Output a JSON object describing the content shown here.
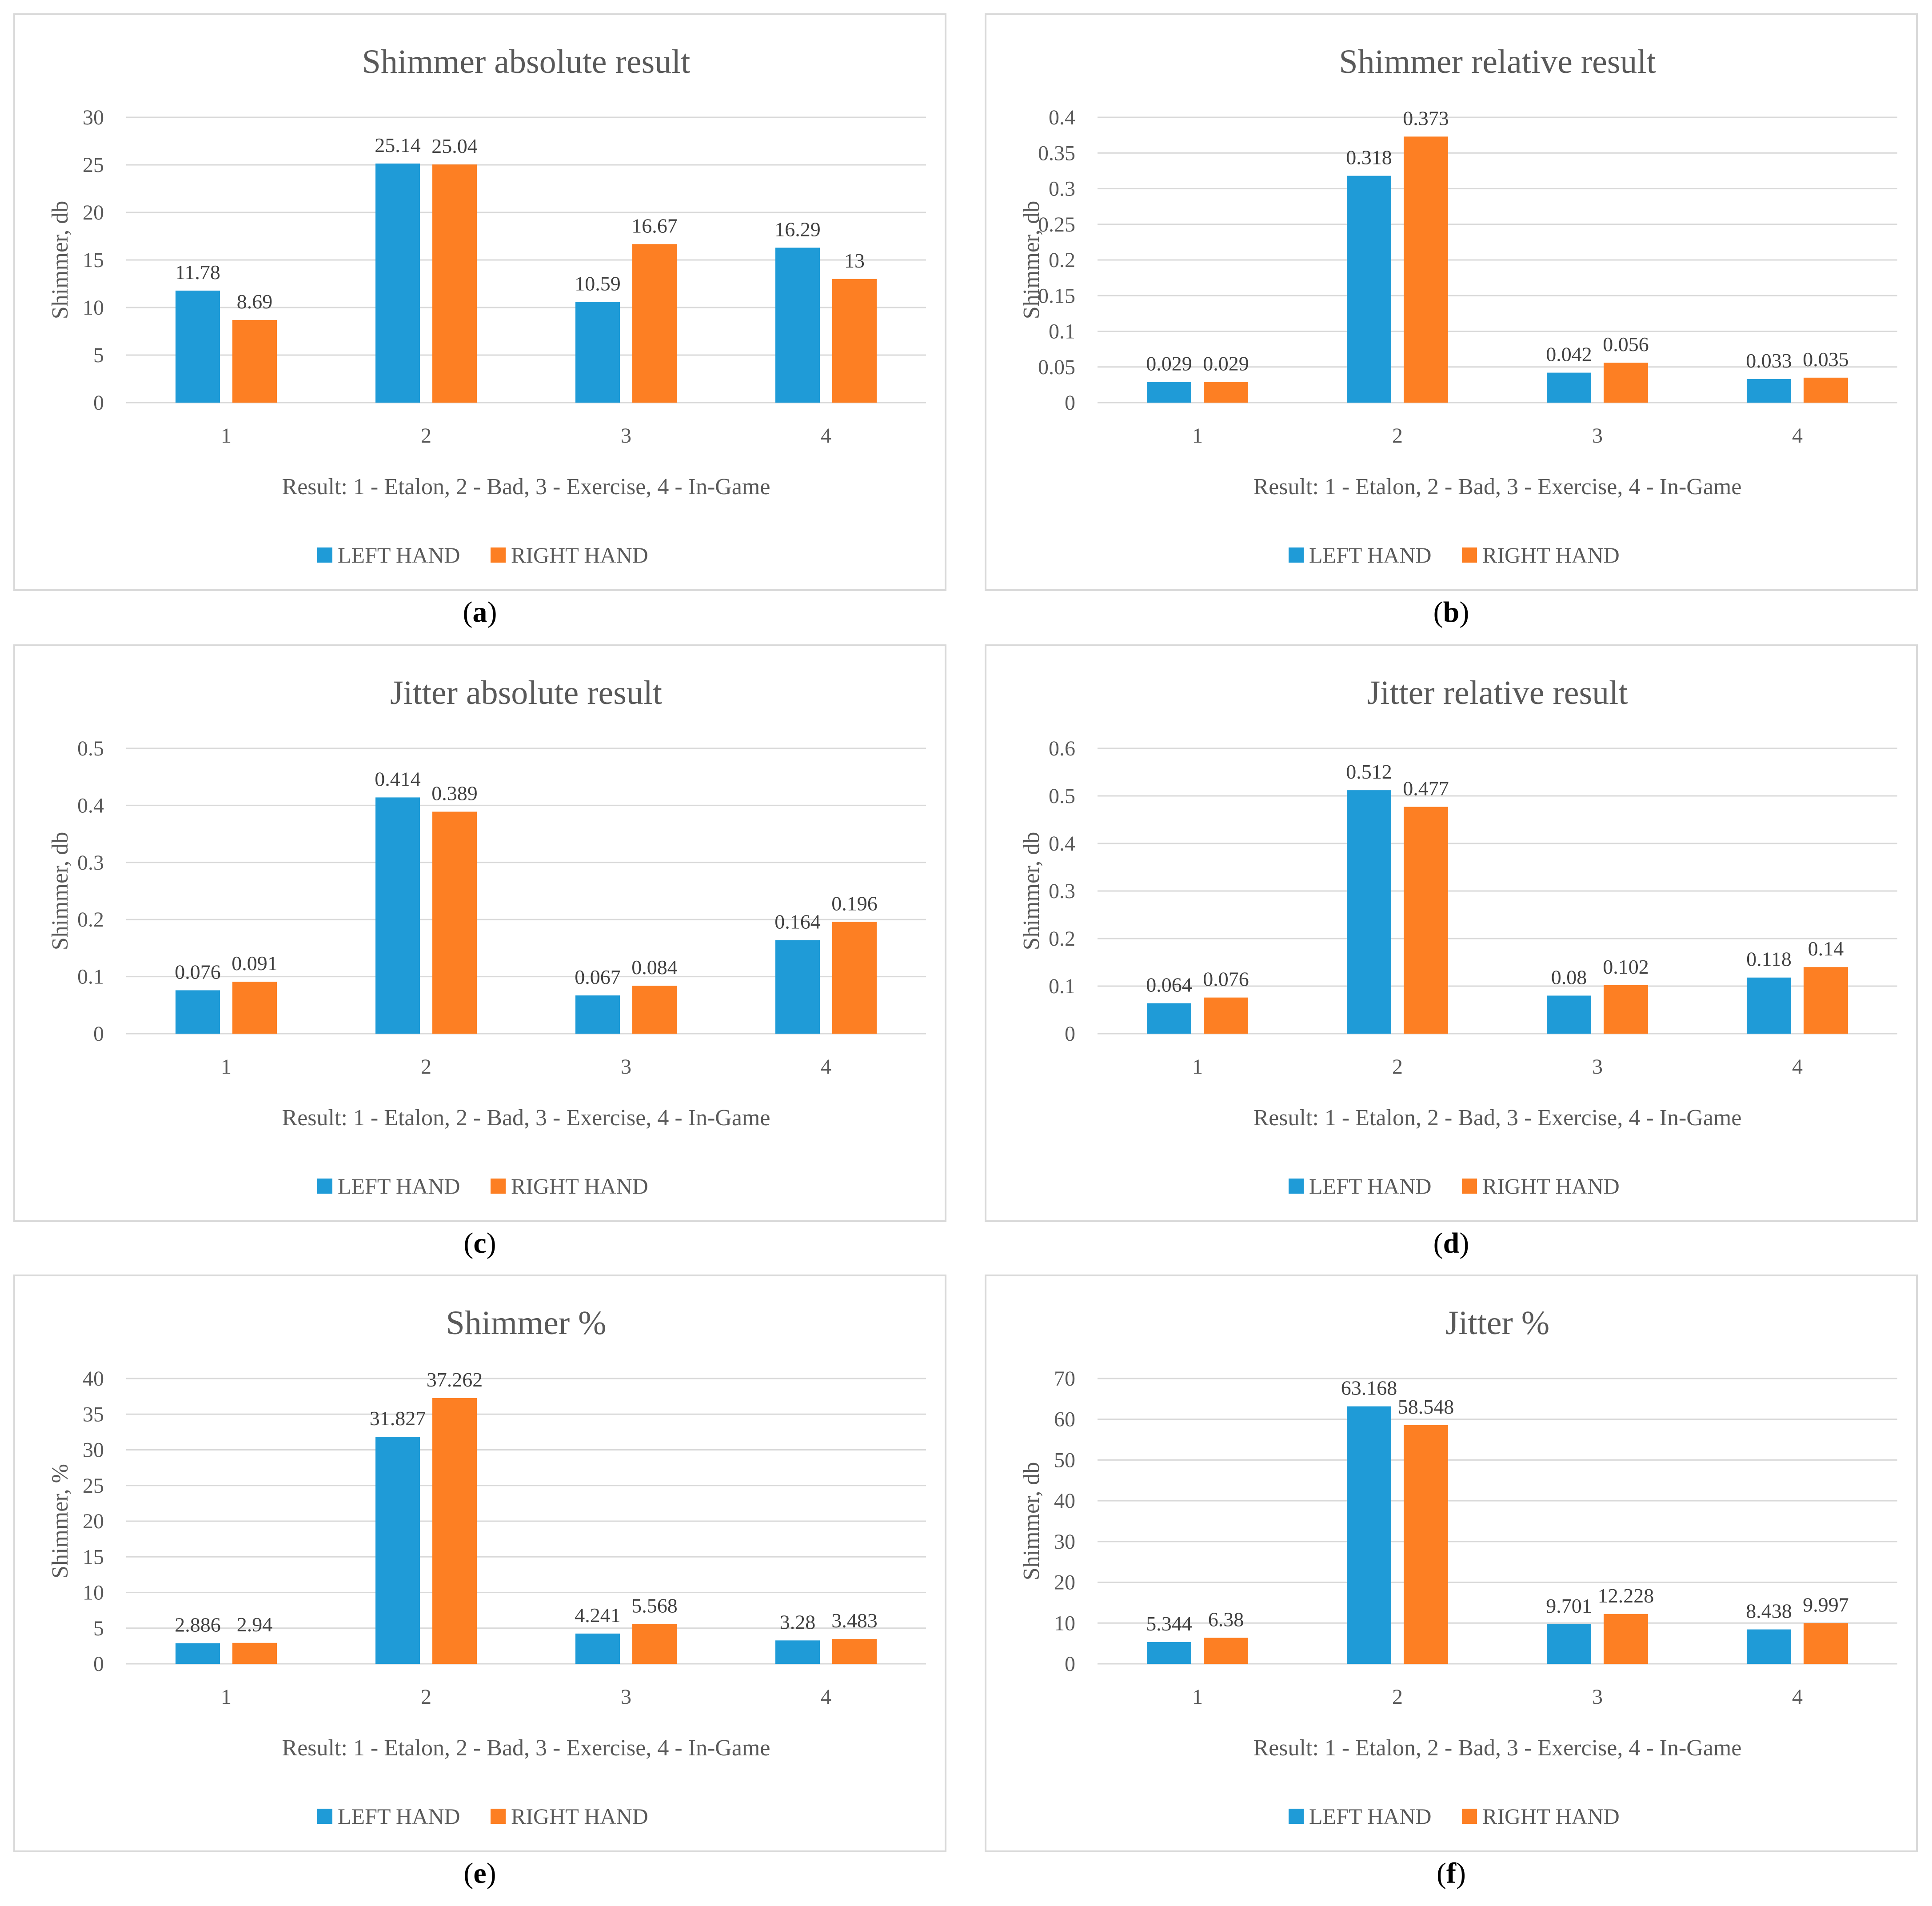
{
  "colors": {
    "left": "#1f9bd7",
    "right": "#fd7f23",
    "grid": "#d9d9d9",
    "text": "#595959"
  },
  "chart_data": [
    {
      "type": "bar",
      "title": "Shimmer absolute result",
      "caption": "a",
      "xlabel": "Result: 1 - Etalon, 2 - Bad, 3 - Exercise, 4 - In-Game",
      "ylabel": "Shimmer, db",
      "categories": [
        "1",
        "2",
        "3",
        "4"
      ],
      "ylim": [
        0,
        30
      ],
      "yticks": [
        0,
        5,
        10,
        15,
        20,
        25,
        30
      ],
      "ytick_labels": [
        "0",
        "5",
        "10",
        "15",
        "20",
        "25",
        "30"
      ],
      "series": [
        {
          "name": "LEFT HAND",
          "values": [
            11.78,
            25.14,
            10.59,
            16.29
          ],
          "labels": [
            "11.78",
            "25.14",
            "10.59",
            "16.29"
          ]
        },
        {
          "name": "RIGHT HAND",
          "values": [
            8.69,
            25.04,
            16.67,
            13
          ],
          "labels": [
            "8.69",
            "25.04",
            "16.67",
            "13"
          ]
        }
      ],
      "legend": "bottom"
    },
    {
      "type": "bar",
      "title": "Shimmer relative result",
      "caption": "b",
      "xlabel": "Result: 1 - Etalon, 2 - Bad, 3 - Exercise, 4 - In-Game",
      "ylabel": "Shimmer, db",
      "categories": [
        "1",
        "2",
        "3",
        "4"
      ],
      "ylim": [
        0,
        0.4
      ],
      "yticks": [
        0,
        0.05,
        0.1,
        0.15,
        0.2,
        0.25,
        0.3,
        0.35,
        0.4
      ],
      "ytick_labels": [
        "0",
        "0.05",
        "0.1",
        "0.15",
        "0.2",
        "0.25",
        "0.3",
        "0.35",
        "0.4"
      ],
      "series": [
        {
          "name": "LEFT HAND",
          "values": [
            0.029,
            0.318,
            0.042,
            0.033
          ],
          "labels": [
            "0.029",
            "0.318",
            "0.042",
            "0.033"
          ]
        },
        {
          "name": "RIGHT HAND",
          "values": [
            0.029,
            0.373,
            0.056,
            0.035
          ],
          "labels": [
            "0.029",
            "0.373",
            "0.056",
            "0.035"
          ]
        }
      ],
      "legend": "bottom"
    },
    {
      "type": "bar",
      "title": "Jitter absolute result",
      "caption": "c",
      "xlabel": "Result: 1 - Etalon, 2 - Bad, 3 - Exercise, 4 - In-Game",
      "ylabel": "Shimmer, db",
      "categories": [
        "1",
        "2",
        "3",
        "4"
      ],
      "ylim": [
        0,
        0.5
      ],
      "yticks": [
        0,
        0.1,
        0.2,
        0.3,
        0.4,
        0.5
      ],
      "ytick_labels": [
        "0",
        "0.1",
        "0.2",
        "0.3",
        "0.4",
        "0.5"
      ],
      "series": [
        {
          "name": "LEFT HAND",
          "values": [
            0.076,
            0.414,
            0.067,
            0.164
          ],
          "labels": [
            "0.076",
            "0.414",
            "0.067",
            "0.164"
          ]
        },
        {
          "name": "RIGHT HAND",
          "values": [
            0.091,
            0.389,
            0.084,
            0.196
          ],
          "labels": [
            "0.091",
            "0.389",
            "0.084",
            "0.196"
          ]
        }
      ],
      "legend": "bottom"
    },
    {
      "type": "bar",
      "title": "Jitter relative result",
      "caption": "d",
      "xlabel": "Result: 1 - Etalon, 2 - Bad, 3 - Exercise, 4 - In-Game",
      "ylabel": "Shimmer, db",
      "categories": [
        "1",
        "2",
        "3",
        "4"
      ],
      "ylim": [
        0,
        0.6
      ],
      "yticks": [
        0,
        0.1,
        0.2,
        0.3,
        0.4,
        0.5,
        0.6
      ],
      "ytick_labels": [
        "0",
        "0.1",
        "0.2",
        "0.3",
        "0.4",
        "0.5",
        "0.6"
      ],
      "series": [
        {
          "name": "LEFT HAND",
          "values": [
            0.064,
            0.512,
            0.08,
            0.118
          ],
          "labels": [
            "0.064",
            "0.512",
            "0.08",
            "0.118"
          ]
        },
        {
          "name": "RIGHT HAND",
          "values": [
            0.076,
            0.477,
            0.102,
            0.14
          ],
          "labels": [
            "0.076",
            "0.477",
            "0.102",
            "0.14"
          ]
        }
      ],
      "legend": "bottom"
    },
    {
      "type": "bar",
      "title": "Shimmer %",
      "caption": "e",
      "xlabel": "Result: 1 - Etalon, 2 - Bad, 3 - Exercise, 4 - In-Game",
      "ylabel": "Shimmer, %",
      "categories": [
        "1",
        "2",
        "3",
        "4"
      ],
      "ylim": [
        0,
        40
      ],
      "yticks": [
        0,
        5,
        10,
        15,
        20,
        25,
        30,
        35,
        40
      ],
      "ytick_labels": [
        "0",
        "5",
        "10",
        "15",
        "20",
        "25",
        "30",
        "35",
        "40"
      ],
      "series": [
        {
          "name": "LEFT HAND",
          "values": [
            2.886,
            31.827,
            4.241,
            3.28
          ],
          "labels": [
            "2.886",
            "31.827",
            "4.241",
            "3.28"
          ]
        },
        {
          "name": "RIGHT HAND",
          "values": [
            2.94,
            37.262,
            5.568,
            3.483
          ],
          "labels": [
            "2.94",
            "37.262",
            "5.568",
            "3.483"
          ]
        }
      ],
      "legend": "bottom"
    },
    {
      "type": "bar",
      "title": "Jitter %",
      "caption": "f",
      "xlabel": "Result: 1 - Etalon, 2 - Bad, 3 - Exercise, 4 - In-Game",
      "ylabel": "Shimmer, db",
      "categories": [
        "1",
        "2",
        "3",
        "4"
      ],
      "ylim": [
        0,
        70
      ],
      "yticks": [
        0,
        10,
        20,
        30,
        40,
        50,
        60,
        70
      ],
      "ytick_labels": [
        "0",
        "10",
        "20",
        "30",
        "40",
        "50",
        "60",
        "70"
      ],
      "series": [
        {
          "name": "LEFT HAND",
          "values": [
            5.344,
            63.168,
            9.701,
            8.438
          ],
          "labels": [
            "5.344",
            "63.168",
            "9.701",
            "8.438"
          ]
        },
        {
          "name": "RIGHT HAND",
          "values": [
            6.38,
            58.548,
            12.228,
            9.997
          ],
          "labels": [
            "6.38",
            "58.548",
            "12.228",
            "9.997"
          ]
        }
      ],
      "legend": "bottom"
    }
  ]
}
